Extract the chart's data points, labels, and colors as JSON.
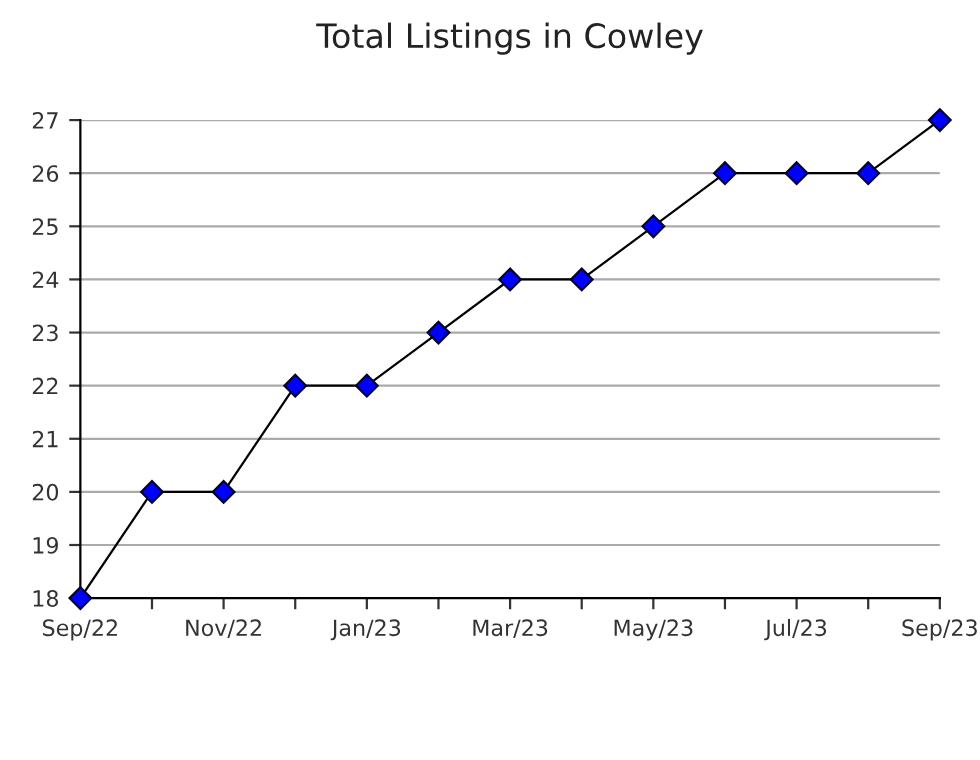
{
  "chart_data": {
    "type": "line",
    "title": "Total Listings in Cowley",
    "categories": [
      "Sep/22",
      null,
      "Nov/22",
      null,
      "Jan/23",
      null,
      "Mar/23",
      null,
      "May/23",
      null,
      "Jul/23",
      null,
      "Sep/23"
    ],
    "series": [
      {
        "color": "#0000ff",
        "values": [
          18,
          20,
          20,
          22,
          22,
          23,
          24,
          24,
          25,
          26,
          26,
          26,
          27
        ]
      }
    ],
    "ylim": [
      18,
      27
    ],
    "yticks": [
      18,
      19,
      20,
      21,
      22,
      23,
      24,
      25,
      26,
      27
    ],
    "grid": "y",
    "marker": "diamond",
    "line_style": "solid"
  }
}
